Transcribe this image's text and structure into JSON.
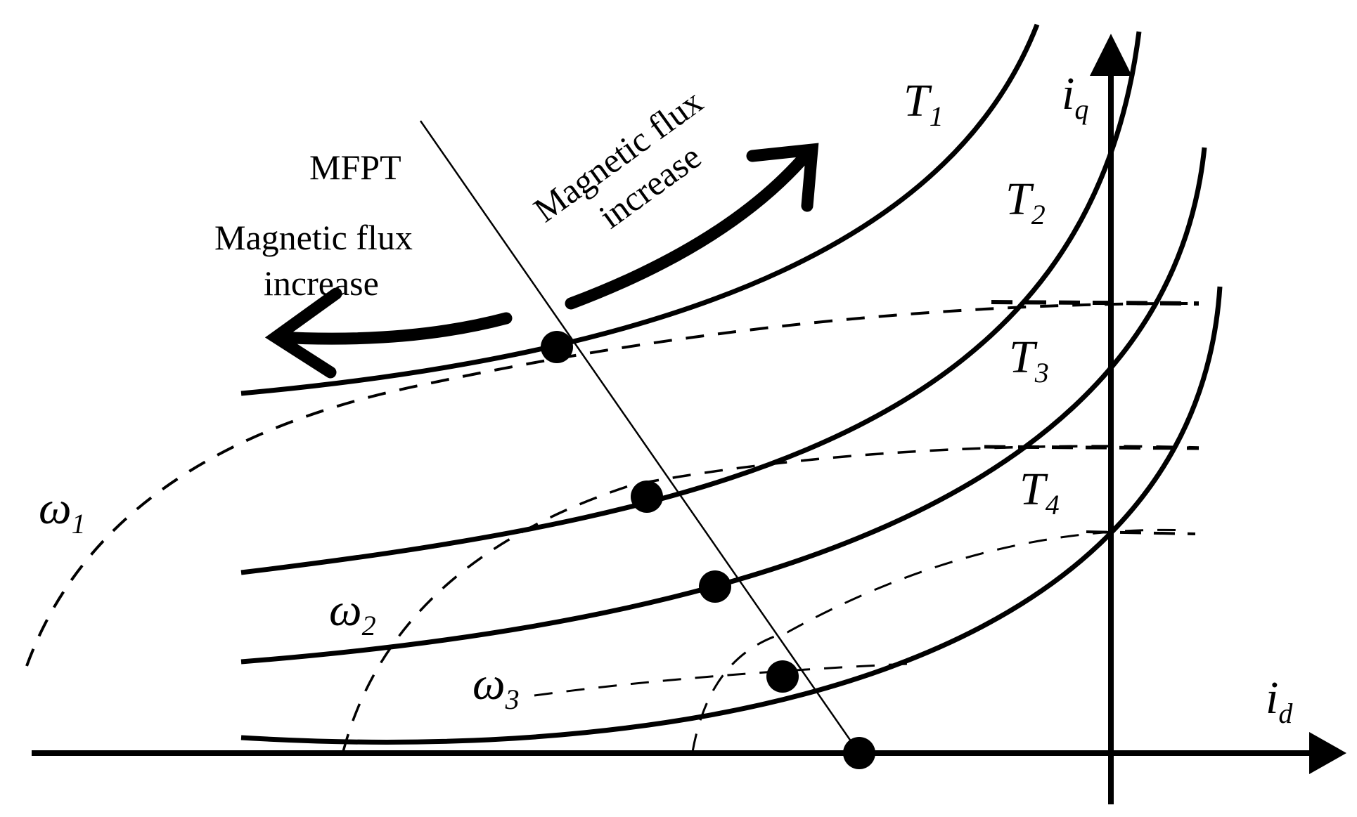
{
  "labels": {
    "mfpt": "MFPT",
    "flux_left_line1": "Magnetic flux",
    "flux_left_line2": "increase",
    "flux_right_line1": "Magnetic flux",
    "flux_right_line2": "increase",
    "axis_q_main": "i",
    "axis_q_sub": "q",
    "axis_d_main": "i",
    "axis_d_sub": "d",
    "torque_symbol": "T",
    "torque_1": "1",
    "torque_2": "2",
    "torque_3": "3",
    "torque_4": "4",
    "speed_symbol": "ω",
    "speed_1": "1",
    "speed_2": "2",
    "speed_3": "3"
  },
  "colors": {
    "line": "#000000",
    "background": "#ffffff"
  }
}
